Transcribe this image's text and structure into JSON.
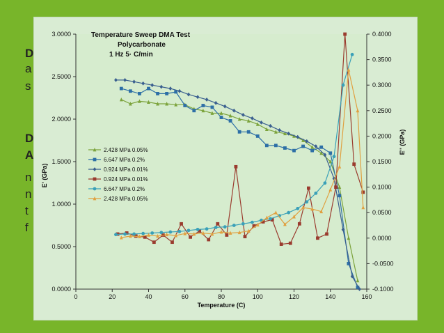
{
  "slide": {
    "background": "#78b52a",
    "fragments": [
      "D",
      "a",
      "s",
      "D",
      "A",
      "n",
      "n",
      "t",
      "f"
    ]
  },
  "chart_data": {
    "type": "line",
    "title_lines": [
      "Temperature Sweep DMA Test",
      "Polycarbonate",
      "1 Hz    5· C/min"
    ],
    "xlabel": "Temperature (C)",
    "ylabel_left": "E' (GPa)",
    "ylabel_right": "E'' (GPa)",
    "xlim": [
      0,
      160
    ],
    "ylim_left": [
      0,
      3
    ],
    "ylim_right": [
      -0.1,
      0.4
    ],
    "x_ticks": [
      "0",
      "20",
      "40",
      "60",
      "80",
      "100",
      "120",
      "140",
      "160"
    ],
    "y_ticks_left": [
      "0.0000",
      "0.5000",
      "1.0000",
      "1.5000",
      "2.0000",
      "2.5000",
      "3.0000"
    ],
    "y_ticks_right": [
      "-0.1000",
      "-0.0500",
      "0.0000",
      "0.0500",
      "0.1000",
      "0.1500",
      "0.2000",
      "0.2500",
      "0.3000",
      "0.3500",
      "0.4000"
    ],
    "grid": false,
    "legend_position": "left-middle",
    "series": [
      {
        "name": "2.428 MPa 0.05%",
        "axis": "left",
        "color": "#7ca33c",
        "marker": "triangle",
        "x": [
          25,
          30,
          35,
          40,
          45,
          50,
          55,
          60,
          65,
          70,
          75,
          80,
          85,
          90,
          95,
          100,
          105,
          110,
          115,
          120,
          125,
          130,
          135,
          140,
          145,
          150,
          155
        ],
        "y": [
          2.23,
          2.18,
          2.21,
          2.2,
          2.18,
          2.18,
          2.17,
          2.17,
          2.12,
          2.1,
          2.07,
          2.07,
          2.04,
          2.0,
          1.98,
          1.94,
          1.88,
          1.85,
          1.83,
          1.8,
          1.75,
          1.67,
          1.6,
          1.5,
          1.2,
          0.6,
          0.1
        ]
      },
      {
        "name": "6.647 MPa 0.2%",
        "axis": "left",
        "color": "#2d6fa6",
        "marker": "square",
        "x": [
          25,
          30,
          35,
          40,
          45,
          50,
          55,
          60,
          65,
          70,
          75,
          80,
          85,
          90,
          95,
          100,
          105,
          110,
          115,
          120,
          125,
          130,
          135,
          140,
          145,
          150,
          155
        ],
        "y": [
          2.36,
          2.33,
          2.3,
          2.36,
          2.3,
          2.3,
          2.32,
          2.16,
          2.1,
          2.16,
          2.14,
          2.02,
          1.98,
          1.85,
          1.85,
          1.8,
          1.69,
          1.69,
          1.66,
          1.63,
          1.68,
          1.63,
          1.67,
          1.6,
          1.1,
          0.3,
          0.02
        ]
      },
      {
        "name": "0.924 MPa 0.01%",
        "axis": "left",
        "color": "#3a5f8f",
        "marker": "diamond",
        "x": [
          22,
          27,
          32,
          37,
          42,
          47,
          52,
          57,
          62,
          67,
          72,
          77,
          82,
          87,
          92,
          97,
          102,
          107,
          112,
          117,
          122,
          127,
          132,
          137,
          142,
          147,
          152,
          156
        ],
        "y": [
          2.46,
          2.46,
          2.44,
          2.42,
          2.4,
          2.38,
          2.36,
          2.33,
          2.29,
          2.26,
          2.23,
          2.19,
          2.15,
          2.1,
          2.05,
          2.01,
          1.96,
          1.92,
          1.87,
          1.83,
          1.79,
          1.74,
          1.68,
          1.58,
          1.3,
          0.7,
          0.15,
          0.0
        ]
      },
      {
        "name": "0.924 MPa 0.01%",
        "axis": "right",
        "color": "#9a3b2e",
        "marker": "square",
        "x": [
          23,
          28,
          33,
          38,
          43,
          48,
          53,
          58,
          63,
          68,
          73,
          78,
          83,
          88,
          93,
          98,
          103,
          108,
          113,
          118,
          123,
          128,
          133,
          138,
          143,
          148,
          153,
          158
        ],
        "y": [
          0.008,
          0.01,
          0.004,
          0.002,
          -0.008,
          0.006,
          -0.008,
          0.028,
          0.002,
          0.014,
          -0.003,
          0.028,
          0.006,
          0.14,
          0.003,
          0.024,
          0.032,
          0.036,
          -0.012,
          -0.01,
          0.028,
          0.098,
          0.0,
          0.008,
          0.1,
          0.4,
          0.145,
          0.09
        ]
      },
      {
        "name": "6.647 MPa 0.2%",
        "axis": "right",
        "color": "#3aa0b8",
        "marker": "circle",
        "x": [
          22,
          27,
          32,
          37,
          42,
          47,
          52,
          57,
          62,
          67,
          72,
          77,
          82,
          87,
          92,
          97,
          102,
          107,
          112,
          117,
          122,
          127,
          132,
          137,
          142,
          147,
          152
        ],
        "y": [
          0.007,
          0.008,
          0.008,
          0.009,
          0.01,
          0.011,
          0.012,
          0.013,
          0.015,
          0.017,
          0.018,
          0.021,
          0.022,
          0.025,
          0.028,
          0.031,
          0.035,
          0.038,
          0.044,
          0.05,
          0.058,
          0.071,
          0.088,
          0.108,
          0.16,
          0.3,
          0.36
        ]
      },
      {
        "name": "2.428 MPa 0.05%",
        "axis": "right",
        "color": "#e0a040",
        "marker": "triangle",
        "x": [
          25,
          30,
          35,
          40,
          45,
          50,
          55,
          60,
          65,
          70,
          75,
          80,
          85,
          90,
          95,
          100,
          105,
          110,
          115,
          120,
          125,
          130,
          135,
          140,
          145,
          150,
          155,
          158
        ],
        "y": [
          0.001,
          0.004,
          0.003,
          0.006,
          0.004,
          0.007,
          0.005,
          0.009,
          0.008,
          0.01,
          0.008,
          0.012,
          0.01,
          0.011,
          0.014,
          0.026,
          0.04,
          0.05,
          0.027,
          0.042,
          0.06,
          0.057,
          0.052,
          0.095,
          0.14,
          0.33,
          0.25,
          0.06
        ]
      }
    ]
  }
}
